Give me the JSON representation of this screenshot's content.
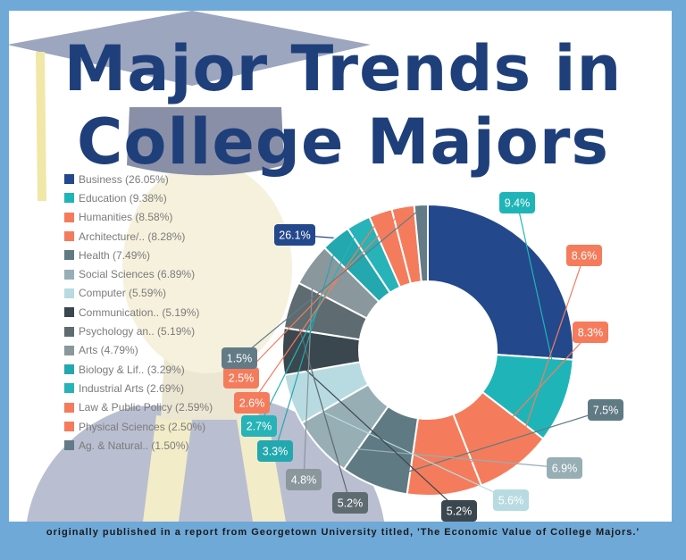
{
  "title": {
    "line1": "Major Trends in",
    "line2": "College Majors"
  },
  "footer": "originally published in a report from Georgetown University titled, 'The Economic Value of College Majors.'",
  "chart_data": {
    "type": "pie",
    "style": "donut",
    "legend_position": "left",
    "slices": [
      {
        "legend": "Business (26.05%)",
        "value": 26.05,
        "label": "26.1%",
        "color": "#24488c"
      },
      {
        "legend": "Education (9.38%)",
        "value": 9.38,
        "label": "9.4%",
        "color": "#1fb5b8"
      },
      {
        "legend": "Humanities (8.58%)",
        "value": 8.58,
        "label": "8.6%",
        "color": "#f47c5c"
      },
      {
        "legend": "Architecture/.. (8.28%)",
        "value": 8.28,
        "label": "8.3%",
        "color": "#f47c5c"
      },
      {
        "legend": "Health (7.49%)",
        "value": 7.49,
        "label": "7.5%",
        "color": "#5f7a82"
      },
      {
        "legend": "Social Sciences (6.89%)",
        "value": 6.89,
        "label": "6.9%",
        "color": "#97aeb5"
      },
      {
        "legend": "Computer (5.59%)",
        "value": 5.59,
        "label": "5.6%",
        "color": "#b7dbe1"
      },
      {
        "legend": "Communication.. (5.19%)",
        "value": 5.19,
        "label": "5.2%",
        "color": "#3b474e"
      },
      {
        "legend": "Psychology an.. (5.19%)",
        "value": 5.19,
        "label": "5.2%",
        "color": "#5e6b70"
      },
      {
        "legend": "Arts (4.79%)",
        "value": 4.79,
        "label": "4.8%",
        "color": "#8a979c"
      },
      {
        "legend": "Biology & Lif.. (3.29%)",
        "value": 3.29,
        "label": "3.3%",
        "color": "#22a8ae"
      },
      {
        "legend": "Industrial Arts (2.69%)",
        "value": 2.69,
        "label": "2.7%",
        "color": "#27b3b8"
      },
      {
        "legend": "Law & Public Policy (2.59%)",
        "value": 2.59,
        "label": "2.6%",
        "color": "#f47c5c"
      },
      {
        "legend": "Physical Sciences (2.50%)",
        "value": 2.5,
        "label": "2.5%",
        "color": "#f47c5c"
      },
      {
        "legend": "Ag. & Natural.. (1.50%)",
        "value": 1.5,
        "label": "1.5%",
        "color": "#627b86"
      }
    ]
  }
}
